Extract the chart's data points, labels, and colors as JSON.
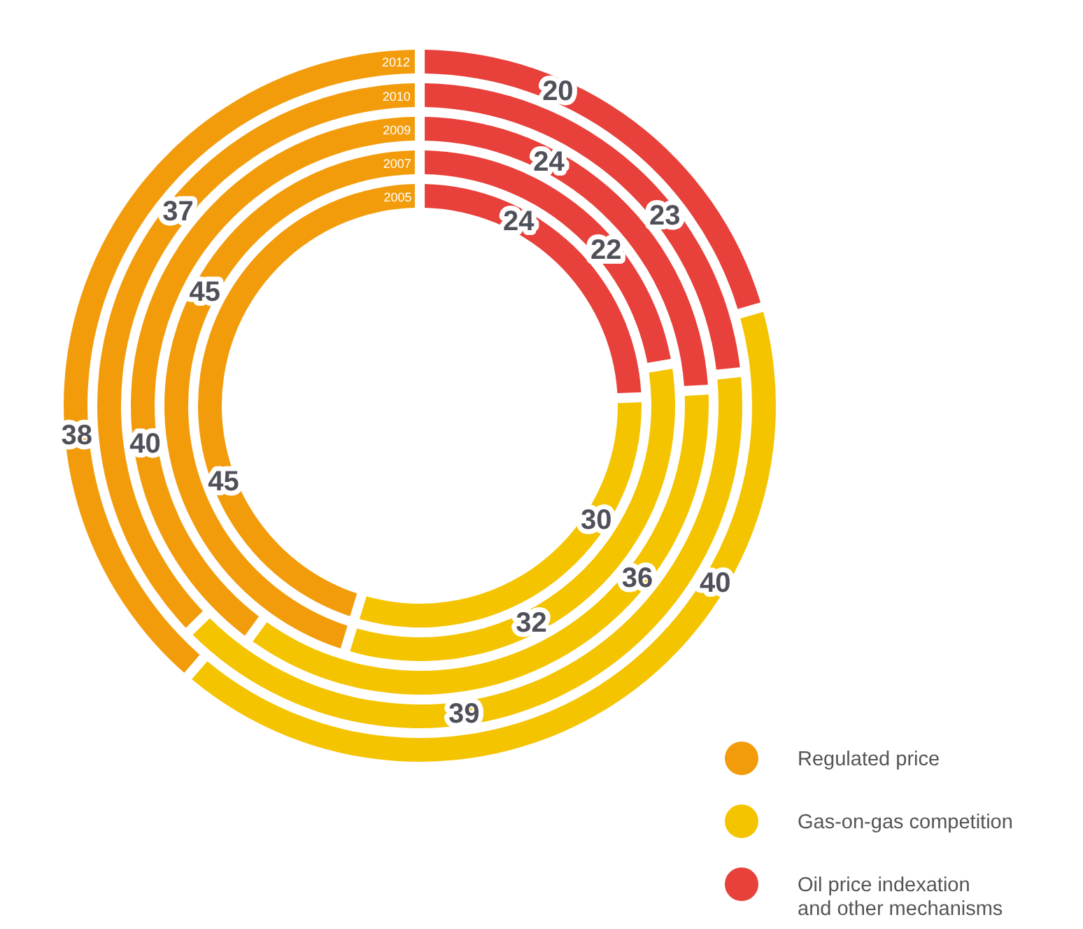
{
  "chart_data": {
    "type": "donut",
    "categories": [
      "Oil price indexation and other mechanisms",
      "Gas-on-gas competition",
      "Regulated price"
    ],
    "colors": [
      "#e8403a",
      "#f5c400",
      "#f39c0b"
    ],
    "series": [
      {
        "name": "2005",
        "values": [
          24,
          30,
          45
        ]
      },
      {
        "name": "2007",
        "values": [
          22,
          32,
          45
        ]
      },
      {
        "name": "2009",
        "values": [
          24,
          36,
          40
        ]
      },
      {
        "name": "2010",
        "values": [
          23,
          39,
          37
        ]
      },
      {
        "name": "2012",
        "values": [
          20,
          40,
          38
        ]
      }
    ],
    "data_labels": true,
    "legend": "bottom right"
  }
}
